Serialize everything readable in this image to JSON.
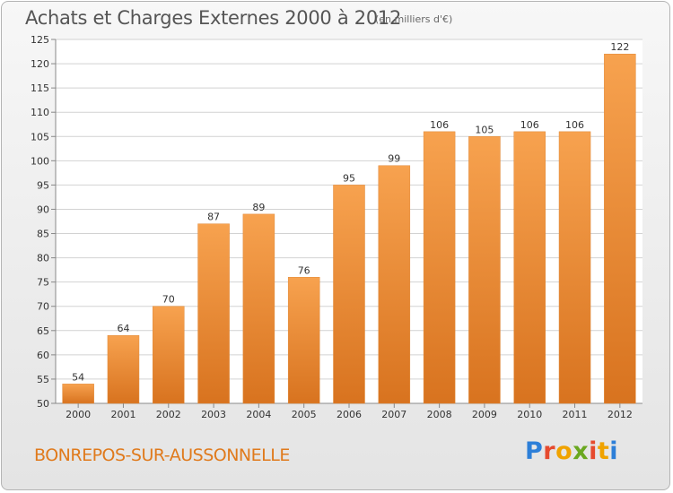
{
  "header": {
    "title": "Achats et Charges Externes 2000 à 2012",
    "unit": "(en milliers d'€)"
  },
  "footer": {
    "commune": "BONREPOS-SUR-AUSSONNELLE",
    "logo_text": "Proxiti",
    "logo_colors": [
      "#2d7fd8",
      "#e64a2e",
      "#f0a300",
      "#6aa820",
      "#e64a2e",
      "#f0a300",
      "#2d7fd8"
    ]
  },
  "colors": {
    "bar_top": "#f7a24f",
    "bar_bottom": "#d8731f",
    "grid": "#d2d2d2",
    "plot_bg": "#ffffff",
    "commune_text": "#e07a1c"
  },
  "chart_data": {
    "type": "bar",
    "title": "Achats et Charges Externes 2000 à 2012",
    "subtitle": "(en milliers d'€)",
    "xlabel": "",
    "ylabel": "",
    "categories": [
      "2000",
      "2001",
      "2002",
      "2003",
      "2004",
      "2005",
      "2006",
      "2007",
      "2008",
      "2009",
      "2010",
      "2011",
      "2012"
    ],
    "values": [
      54,
      64,
      70,
      87,
      89,
      76,
      95,
      99,
      106,
      105,
      106,
      106,
      122
    ],
    "ylim": [
      50,
      125
    ],
    "yticks": [
      50,
      55,
      60,
      65,
      70,
      75,
      80,
      85,
      90,
      95,
      100,
      105,
      110,
      115,
      120,
      125
    ],
    "grid": true,
    "legend": "none",
    "data_labels": true
  }
}
